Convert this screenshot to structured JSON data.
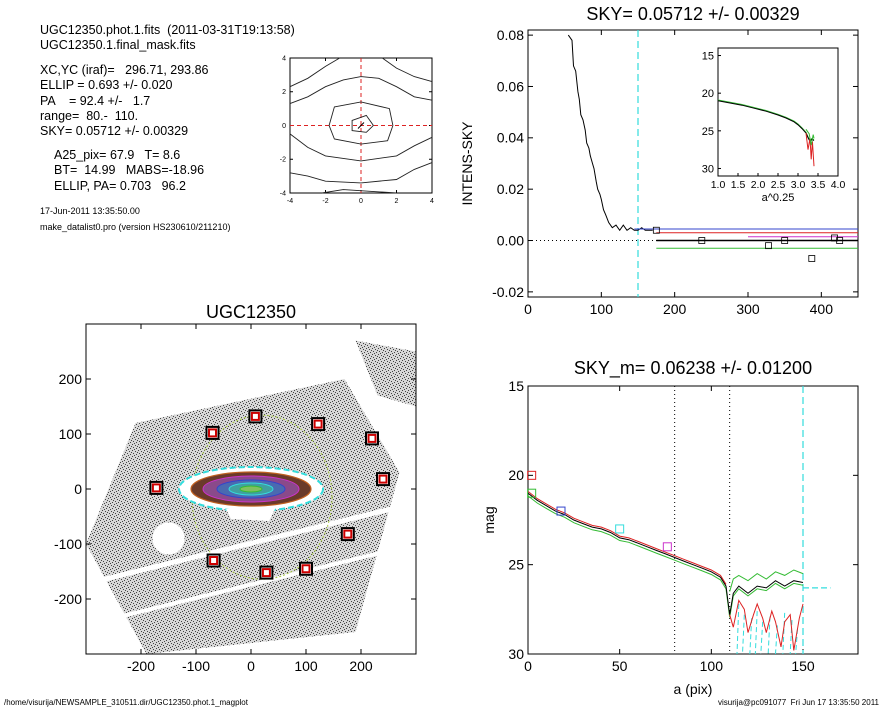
{
  "header": {
    "file_line": "UGC12350.phot.1.fits  (2011-03-31T19:13:58)",
    "mask_line": "UGC12350.1.final_mask.fits",
    "xcyc": "XC,YC (iraf)=   296.71, 293.86",
    "ellip": "ELLIP = 0.693 +/- 0.020",
    "pa": "PA    = 92.4 +/-   1.7",
    "range": "range=  80.-  110.",
    "sky": "SKY= 0.05712 +/- 0.00329",
    "a25": "A25_pix= 67.9   T= 8.6",
    "bt": "BT=  14.99   MABS=-18.96",
    "ellip_pa": "ELLIP, PA= 0.703   96.2",
    "date": "17-Jun-2011 13:35:50.00",
    "program": "make_datalist0.pro (version HS230610/211210)"
  },
  "footer": {
    "left": "/home/visurija/NEWSAMPLE_310511.dir/UGC12350.phot.1_magplot",
    "right": "visurija@pc091077  Fri Jun 17 13:35:50 2011"
  },
  "colors": {
    "cyan": "#33dddd",
    "red": "#dd2222",
    "green": "#33bb33",
    "blue": "#3344cc",
    "magenta": "#cc33cc",
    "grey": "#888888"
  },
  "chart_data": [
    {
      "id": "contour",
      "type": "contour",
      "title": "",
      "xlim": [
        -4,
        4
      ],
      "ylim": [
        -4,
        4
      ],
      "xticks": [
        "-4",
        "-2",
        "0",
        "2",
        "4"
      ],
      "yticks": [
        "-4",
        "-2",
        "0",
        "2",
        "4"
      ],
      "crosshair": [
        0,
        0
      ]
    },
    {
      "id": "sky_profile",
      "type": "line",
      "title": "SKY= 0.05712 +/- 0.00329",
      "xlabel": "",
      "ylabel": "INTENS-SKY",
      "xlim": [
        0,
        450
      ],
      "ylim": [
        -0.022,
        0.082
      ],
      "xticks": [
        "0",
        "100",
        "200",
        "300",
        "400"
      ],
      "yticks": [
        "-0.02",
        "0.00",
        "0.02",
        "0.04",
        "0.06",
        "0.08"
      ],
      "series": [
        {
          "color": "black",
          "x": [
            55,
            60,
            62,
            65,
            68,
            70,
            72,
            75,
            78,
            80,
            83,
            85,
            88,
            90,
            93,
            95,
            98,
            100,
            103,
            106,
            110,
            115,
            120,
            125,
            130,
            135,
            140,
            145,
            150,
            155,
            160,
            170
          ],
          "y": [
            0.08,
            0.078,
            0.068,
            0.066,
            0.058,
            0.055,
            0.049,
            0.047,
            0.043,
            0.038,
            0.036,
            0.033,
            0.03,
            0.028,
            0.023,
            0.02,
            0.018,
            0.016,
            0.012,
            0.01,
            0.007,
            0.005,
            0.006,
            0.004,
            0.006,
            0.004,
            0.005,
            0.004,
            0.004,
            0.005,
            0.004,
            0.004
          ]
        },
        {
          "color": "black",
          "x": [
            175,
            450
          ],
          "y": [
            0.0,
            0.0
          ]
        },
        {
          "color": "red",
          "x": [
            175,
            450
          ],
          "y": [
            0.003,
            0.003
          ]
        },
        {
          "color": "green",
          "x": [
            175,
            450
          ],
          "y": [
            -0.003,
            -0.003
          ]
        },
        {
          "color": "blue",
          "x": [
            145,
            450
          ],
          "y": [
            0.0045,
            0.0045
          ]
        },
        {
          "color": "magenta",
          "x": [
            300,
            450
          ],
          "y": [
            0.0015,
            0.0015
          ]
        }
      ],
      "squares": [
        [
          175,
          0.004
        ],
        [
          237,
          0.0
        ],
        [
          328,
          -0.002
        ],
        [
          350,
          0.0
        ],
        [
          387,
          -0.007
        ],
        [
          418,
          0.001
        ],
        [
          425,
          0.0
        ]
      ],
      "sky_cut_x": 150,
      "inset": {
        "xlabel": "a^0.25",
        "xlim": [
          1.0,
          4.0
        ],
        "ylim": [
          31,
          14
        ],
        "xticks": [
          "1.0",
          "1.5",
          "2.0",
          "2.5",
          "3.0",
          "3.5",
          "4.0"
        ],
        "yticks": [
          "15",
          "20",
          "25",
          "30"
        ],
        "x": [
          1.0,
          1.3,
          1.6,
          1.9,
          2.2,
          2.5,
          2.7,
          2.9,
          3.0,
          3.1,
          3.2,
          3.25,
          3.3,
          3.35,
          3.4
        ],
        "y": [
          20.9,
          21.2,
          21.5,
          21.9,
          22.3,
          22.8,
          23.2,
          23.7,
          24.1,
          24.6,
          25.2,
          25.8,
          26.3,
          26.0,
          26.2
        ]
      }
    },
    {
      "id": "galaxy_image",
      "type": "image",
      "title": "UGC12350",
      "xlim": [
        -300,
        300
      ],
      "ylim": [
        -300,
        300
      ],
      "xticks": [
        "-200",
        "-100",
        "0",
        "100",
        "200"
      ],
      "yticks": [
        "-200",
        "-100",
        "0",
        "100",
        "200"
      ],
      "markers": [
        [
          -172,
          2
        ],
        [
          -70,
          102
        ],
        [
          8,
          132
        ],
        [
          122,
          118
        ],
        [
          220,
          92
        ],
        [
          240,
          18
        ],
        [
          176,
          -82
        ],
        [
          100,
          -145
        ],
        [
          28,
          -152
        ],
        [
          -68,
          -130
        ]
      ]
    },
    {
      "id": "mag_profile",
      "type": "line",
      "title": "SKY_m=  0.06238 +/- 0.01200",
      "xlabel": "a (pix)",
      "ylabel": "mag",
      "xlim": [
        0,
        180
      ],
      "ylim": [
        30,
        15
      ],
      "xticks": [
        "0",
        "50",
        "100",
        "150"
      ],
      "yticks": [
        "15",
        "20",
        "25",
        "30"
      ],
      "vlines": [
        80,
        110
      ],
      "sky_cut_x": 150,
      "series": [
        {
          "color": "black",
          "x": [
            0,
            5,
            10,
            15,
            20,
            25,
            30,
            35,
            40,
            45,
            50,
            55,
            60,
            65,
            70,
            75,
            80,
            85,
            90,
            95,
            100,
            105,
            108,
            110,
            112,
            115,
            120,
            125,
            130,
            135,
            140,
            145,
            150
          ],
          "y": [
            21.0,
            21.4,
            21.7,
            22.0,
            22.2,
            22.5,
            22.7,
            22.9,
            23.0,
            23.2,
            23.5,
            23.6,
            23.8,
            24.0,
            24.2,
            24.4,
            24.6,
            24.8,
            25.0,
            25.2,
            25.4,
            25.7,
            26.2,
            27.8,
            26.6,
            26.2,
            26.6,
            26.2,
            26.3,
            25.9,
            26.2,
            25.9,
            26.0
          ]
        },
        {
          "color": "red",
          "x": [
            110,
            112,
            115,
            118,
            120,
            123,
            125,
            128,
            130,
            133,
            135,
            138,
            140,
            143,
            145,
            148,
            150
          ],
          "y": [
            27.8,
            28.5,
            27.0,
            27.5,
            28.8,
            27.8,
            27.2,
            28.0,
            28.8,
            27.6,
            28.2,
            29.6,
            28.2,
            27.8,
            29.8,
            28.0,
            27.2
          ]
        },
        {
          "color": "green",
          "x": [
            110,
            112,
            115,
            120,
            125,
            130,
            135,
            140,
            145,
            150
          ],
          "y": [
            26.5,
            25.8,
            25.6,
            25.9,
            25.5,
            25.8,
            25.4,
            25.6,
            25.3,
            25.5
          ]
        },
        {
          "color": "cyan",
          "x": [
            150,
            165
          ],
          "y": [
            26.3,
            26.3
          ]
        }
      ],
      "markers": [
        {
          "color": "red",
          "x": 2,
          "y": 20.0
        },
        {
          "color": "green",
          "x": 2,
          "y": 21.0
        },
        {
          "color": "blue",
          "x": 18,
          "y": 22.0
        },
        {
          "color": "cyan",
          "x": 50,
          "y": 23.0
        },
        {
          "color": "magenta",
          "x": 76,
          "y": 24.0
        }
      ]
    }
  ]
}
